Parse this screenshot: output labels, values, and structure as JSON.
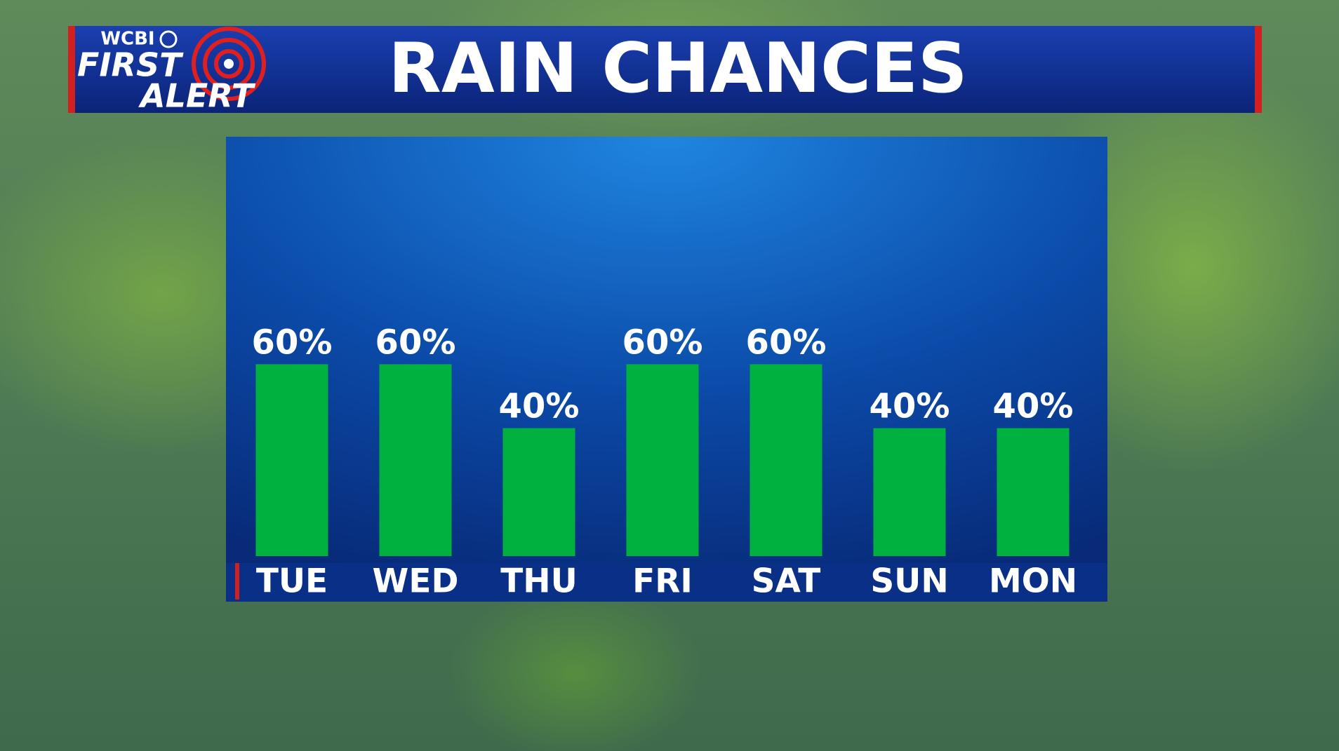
{
  "chart_data": {
    "type": "bar",
    "title": "RAIN CHANCES",
    "categories": [
      "TUE",
      "WED",
      "THU",
      "FRI",
      "SAT",
      "SUN",
      "MON"
    ],
    "values": [
      60,
      60,
      40,
      60,
      60,
      40,
      40
    ],
    "value_labels": [
      "60%",
      "60%",
      "40%",
      "60%",
      "60%",
      "40%",
      "40%"
    ],
    "color": "#00b140"
  },
  "logo": {
    "station": "WCBI",
    "line1": "FIRST",
    "line2": "ALERT"
  }
}
